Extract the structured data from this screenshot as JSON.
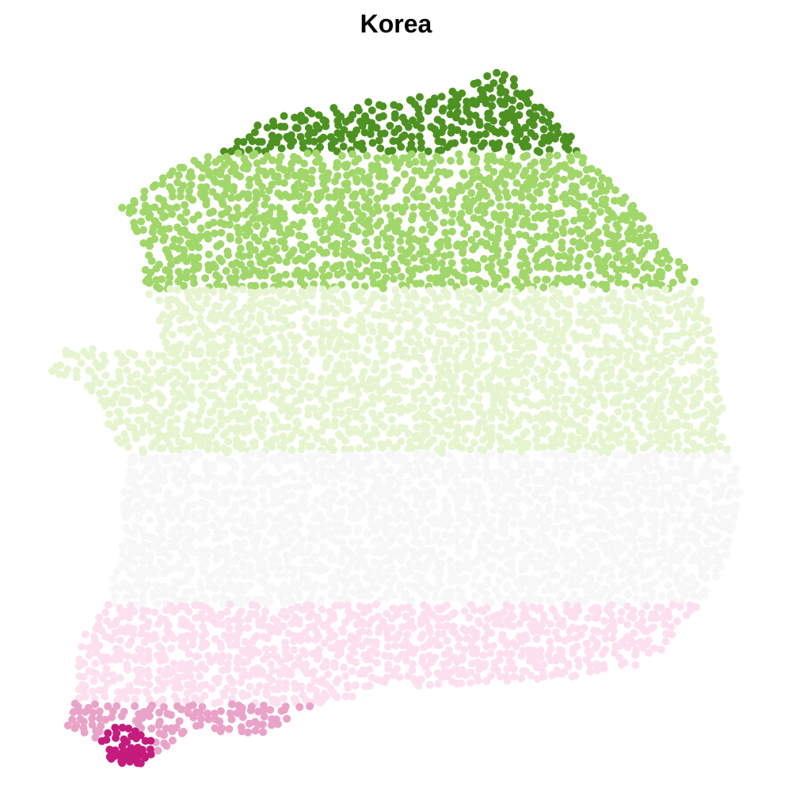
{
  "title": "Korea",
  "map": {
    "style": "dot-density",
    "bands": [
      {
        "color": "#4d9221"
      },
      {
        "color": "#a1d76a"
      },
      {
        "color": "#e6f5d0"
      },
      {
        "color": "#f7f7f7"
      },
      {
        "color": "#fde0ef"
      },
      {
        "color": "#e9a3c9"
      },
      {
        "color": "#c51b7d"
      }
    ]
  }
}
